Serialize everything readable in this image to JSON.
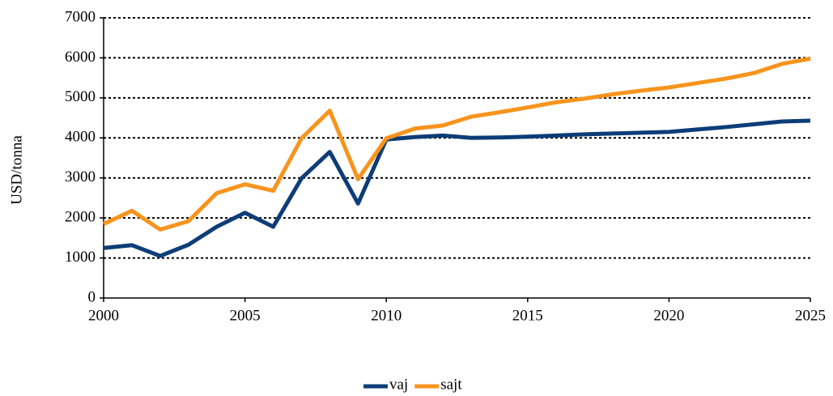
{
  "chart_data": {
    "type": "line",
    "ylabel": "USD/tonna",
    "x": [
      2000,
      2001,
      2002,
      2003,
      2004,
      2005,
      2006,
      2007,
      2008,
      2009,
      2010,
      2011,
      2012,
      2013,
      2014,
      2015,
      2016,
      2017,
      2018,
      2019,
      2020,
      2021,
      2022,
      2023,
      2024,
      2025
    ],
    "series": [
      {
        "name": "vaj",
        "color": "#0d3d78",
        "values": [
          1250,
          1320,
          1050,
          1330,
          1780,
          2130,
          1780,
          2990,
          3650,
          2360,
          3960,
          4020,
          4060,
          4000,
          4010,
          4030,
          4060,
          4090,
          4110,
          4130,
          4150,
          4210,
          4270,
          4340,
          4410,
          4430
        ]
      },
      {
        "name": "sajt",
        "color": "#f7941d",
        "values": [
          1850,
          2180,
          1710,
          1920,
          2620,
          2840,
          2680,
          3990,
          4680,
          2970,
          3990,
          4230,
          4310,
          4530,
          4640,
          4760,
          4890,
          4980,
          5090,
          5180,
          5260,
          5370,
          5480,
          5620,
          5850,
          5980
        ]
      }
    ],
    "xlim": [
      2000,
      2025
    ],
    "xticks": [
      2000,
      2005,
      2010,
      2015,
      2020,
      2025
    ],
    "ylim": [
      0,
      7000
    ],
    "yticks": [
      0,
      1000,
      2000,
      3000,
      4000,
      5000,
      6000,
      7000
    ],
    "grid": true,
    "legend": "bottom"
  }
}
